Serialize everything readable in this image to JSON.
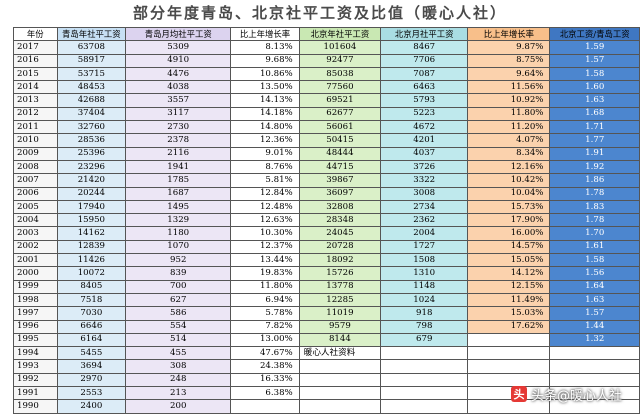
{
  "title": "部分年度青岛、北京社平工资及比值（暖心人社）",
  "headers": [
    "年份",
    "青岛年社平工资",
    "青岛月均社平工资",
    "比上年增长率",
    "北京年社平工资",
    "北京月社平工资",
    "比上年增长率",
    "北京工资/青岛工资"
  ],
  "rows": [
    [
      "2017",
      "63708",
      "5309",
      "8.13%",
      "101604",
      "8467",
      "9.87%",
      "1.59"
    ],
    [
      "2016",
      "58917",
      "4910",
      "9.68%",
      "92477",
      "7706",
      "8.75%",
      "1.57"
    ],
    [
      "2015",
      "53715",
      "4476",
      "10.86%",
      "85038",
      "7087",
      "9.64%",
      "1.58"
    ],
    [
      "2014",
      "48453",
      "4038",
      "13.50%",
      "77560",
      "6463",
      "11.56%",
      "1.60"
    ],
    [
      "2013",
      "42688",
      "3557",
      "14.13%",
      "69521",
      "5793",
      "10.92%",
      "1.63"
    ],
    [
      "2012",
      "37404",
      "3117",
      "14.18%",
      "62677",
      "5223",
      "11.80%",
      "1.68"
    ],
    [
      "2011",
      "32760",
      "2730",
      "14.80%",
      "56061",
      "4672",
      "11.20%",
      "1.71"
    ],
    [
      "2010",
      "28536",
      "2378",
      "12.36%",
      "50415",
      "4201",
      "4.07%",
      "1.77"
    ],
    [
      "2009",
      "25396",
      "2116",
      "9.01%",
      "48444",
      "4037",
      "8.34%",
      "1.91"
    ],
    [
      "2008",
      "23296",
      "1941",
      "8.76%",
      "44715",
      "3726",
      "12.16%",
      "1.92"
    ],
    [
      "2007",
      "21420",
      "1785",
      "5.81%",
      "39867",
      "3322",
      "10.42%",
      "1.86"
    ],
    [
      "2006",
      "20244",
      "1687",
      "12.84%",
      "36097",
      "3008",
      "10.04%",
      "1.78"
    ],
    [
      "2005",
      "17940",
      "1495",
      "12.48%",
      "32808",
      "2734",
      "15.73%",
      "1.83"
    ],
    [
      "2004",
      "15950",
      "1329",
      "12.63%",
      "28348",
      "2362",
      "17.90%",
      "1.78"
    ],
    [
      "2003",
      "14162",
      "1180",
      "10.30%",
      "24045",
      "2004",
      "16.00%",
      "1.70"
    ],
    [
      "2002",
      "12839",
      "1070",
      "12.37%",
      "20728",
      "1727",
      "14.57%",
      "1.61"
    ],
    [
      "2001",
      "11426",
      "952",
      "13.44%",
      "18092",
      "1508",
      "15.05%",
      "1.58"
    ],
    [
      "2000",
      "10072",
      "839",
      "19.83%",
      "15726",
      "1310",
      "14.12%",
      "1.56"
    ],
    [
      "1999",
      "8405",
      "700",
      "11.80%",
      "13778",
      "1148",
      "12.15%",
      "1.64"
    ],
    [
      "1998",
      "7518",
      "627",
      "6.94%",
      "12285",
      "1024",
      "11.49%",
      "1.63"
    ],
    [
      "1997",
      "7030",
      "586",
      "5.78%",
      "11019",
      "918",
      "15.03%",
      "1.57"
    ],
    [
      "1996",
      "6646",
      "554",
      "7.82%",
      "9579",
      "798",
      "17.62%",
      "1.44"
    ],
    [
      "1995",
      "6164",
      "514",
      "13.00%",
      "8144",
      "679",
      "",
      "1.32"
    ],
    [
      "1994",
      "5455",
      "455",
      "47.67%",
      "暖心人社资料",
      "",
      "",
      ""
    ],
    [
      "1993",
      "3694",
      "308",
      "24.38%",
      "",
      "",
      "",
      ""
    ],
    [
      "1992",
      "2970",
      "248",
      "16.33%",
      "",
      "",
      "",
      ""
    ],
    [
      "1991",
      "2553",
      "213",
      "6.38%",
      "",
      "",
      "",
      ""
    ],
    [
      "1990",
      "2400",
      "200",
      "",
      "",
      "",
      "",
      ""
    ]
  ],
  "watermark": {
    "text": "头条@暖心人社",
    "badge": "头条",
    "icon": "toutiao-logo-icon",
    "accent": "#e53935"
  },
  "colors": {
    "qingdao_year": "#dcecf7",
    "qingdao_month": "#ece6f5",
    "beijing_year": "#daf0c8",
    "beijing_month": "#bfe9ed",
    "beijing_growth": "#fbd2ad",
    "ratio": "#4c86cf"
  }
}
